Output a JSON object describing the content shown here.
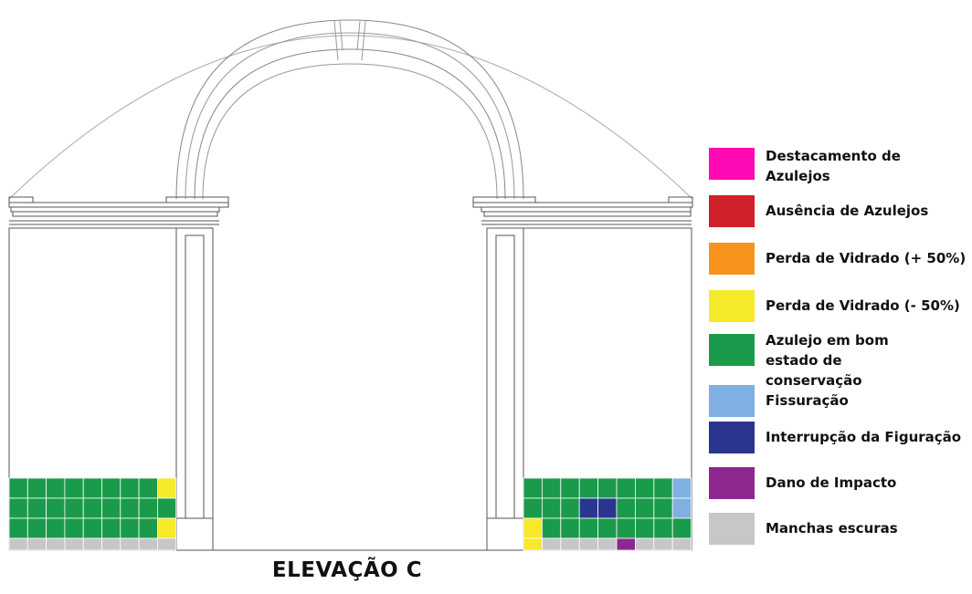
{
  "title": "ELEVAÇÃO C",
  "legend": [
    {
      "key": "destacamento",
      "label": "Destacamento de Azulejos",
      "color": "#ff0ab4"
    },
    {
      "key": "ausencia",
      "label": "Ausência de Azulejos",
      "color": "#d0202a"
    },
    {
      "key": "perda_mais",
      "label": "Perda de Vidrado (+ 50%)",
      "color": "#f7941d"
    },
    {
      "key": "perda_menos",
      "label": "Perda de Vidrado (- 50%)",
      "color": "#f5e92a"
    },
    {
      "key": "bom_estado",
      "label": "Azulejo em bom estado de conservação",
      "color": "#1a9b4b"
    },
    {
      "key": "fissuracao",
      "label": "Fissuração",
      "color": "#7fb0e1"
    },
    {
      "key": "interrupcao",
      "label": "Interrupção da Figuração",
      "color": "#2a3590"
    },
    {
      "key": "dano",
      "label": "Dano de Impacto",
      "color": "#8e278f"
    },
    {
      "key": "manchas",
      "label": "Manchas escuras",
      "color": "#c8c6c8"
    }
  ],
  "tile_panels": {
    "left": [
      [
        "bom_estado",
        "bom_estado",
        "bom_estado",
        "bom_estado",
        "bom_estado",
        "bom_estado",
        "bom_estado",
        "bom_estado",
        "perda_menos"
      ],
      [
        "bom_estado",
        "bom_estado",
        "bom_estado",
        "bom_estado",
        "bom_estado",
        "bom_estado",
        "bom_estado",
        "bom_estado",
        "bom_estado"
      ],
      [
        "bom_estado",
        "bom_estado",
        "bom_estado",
        "bom_estado",
        "bom_estado",
        "bom_estado",
        "bom_estado",
        "bom_estado",
        "perda_menos"
      ],
      [
        "manchas",
        "manchas",
        "manchas",
        "manchas",
        "manchas",
        "manchas",
        "manchas",
        "manchas",
        "manchas"
      ]
    ],
    "right": [
      [
        "bom_estado",
        "bom_estado",
        "bom_estado",
        "bom_estado",
        "bom_estado",
        "bom_estado",
        "bom_estado",
        "bom_estado",
        "fissuracao"
      ],
      [
        "bom_estado",
        "bom_estado",
        "bom_estado",
        "interrupcao",
        "interrupcao",
        "bom_estado",
        "bom_estado",
        "bom_estado",
        "fissuracao"
      ],
      [
        "perda_menos",
        "bom_estado",
        "bom_estado",
        "bom_estado",
        "bom_estado",
        "bom_estado",
        "bom_estado",
        "bom_estado",
        "bom_estado"
      ],
      [
        "perda_menos",
        "manchas",
        "manchas",
        "manchas",
        "manchas",
        "dano",
        "manchas",
        "manchas",
        "manchas"
      ]
    ]
  }
}
